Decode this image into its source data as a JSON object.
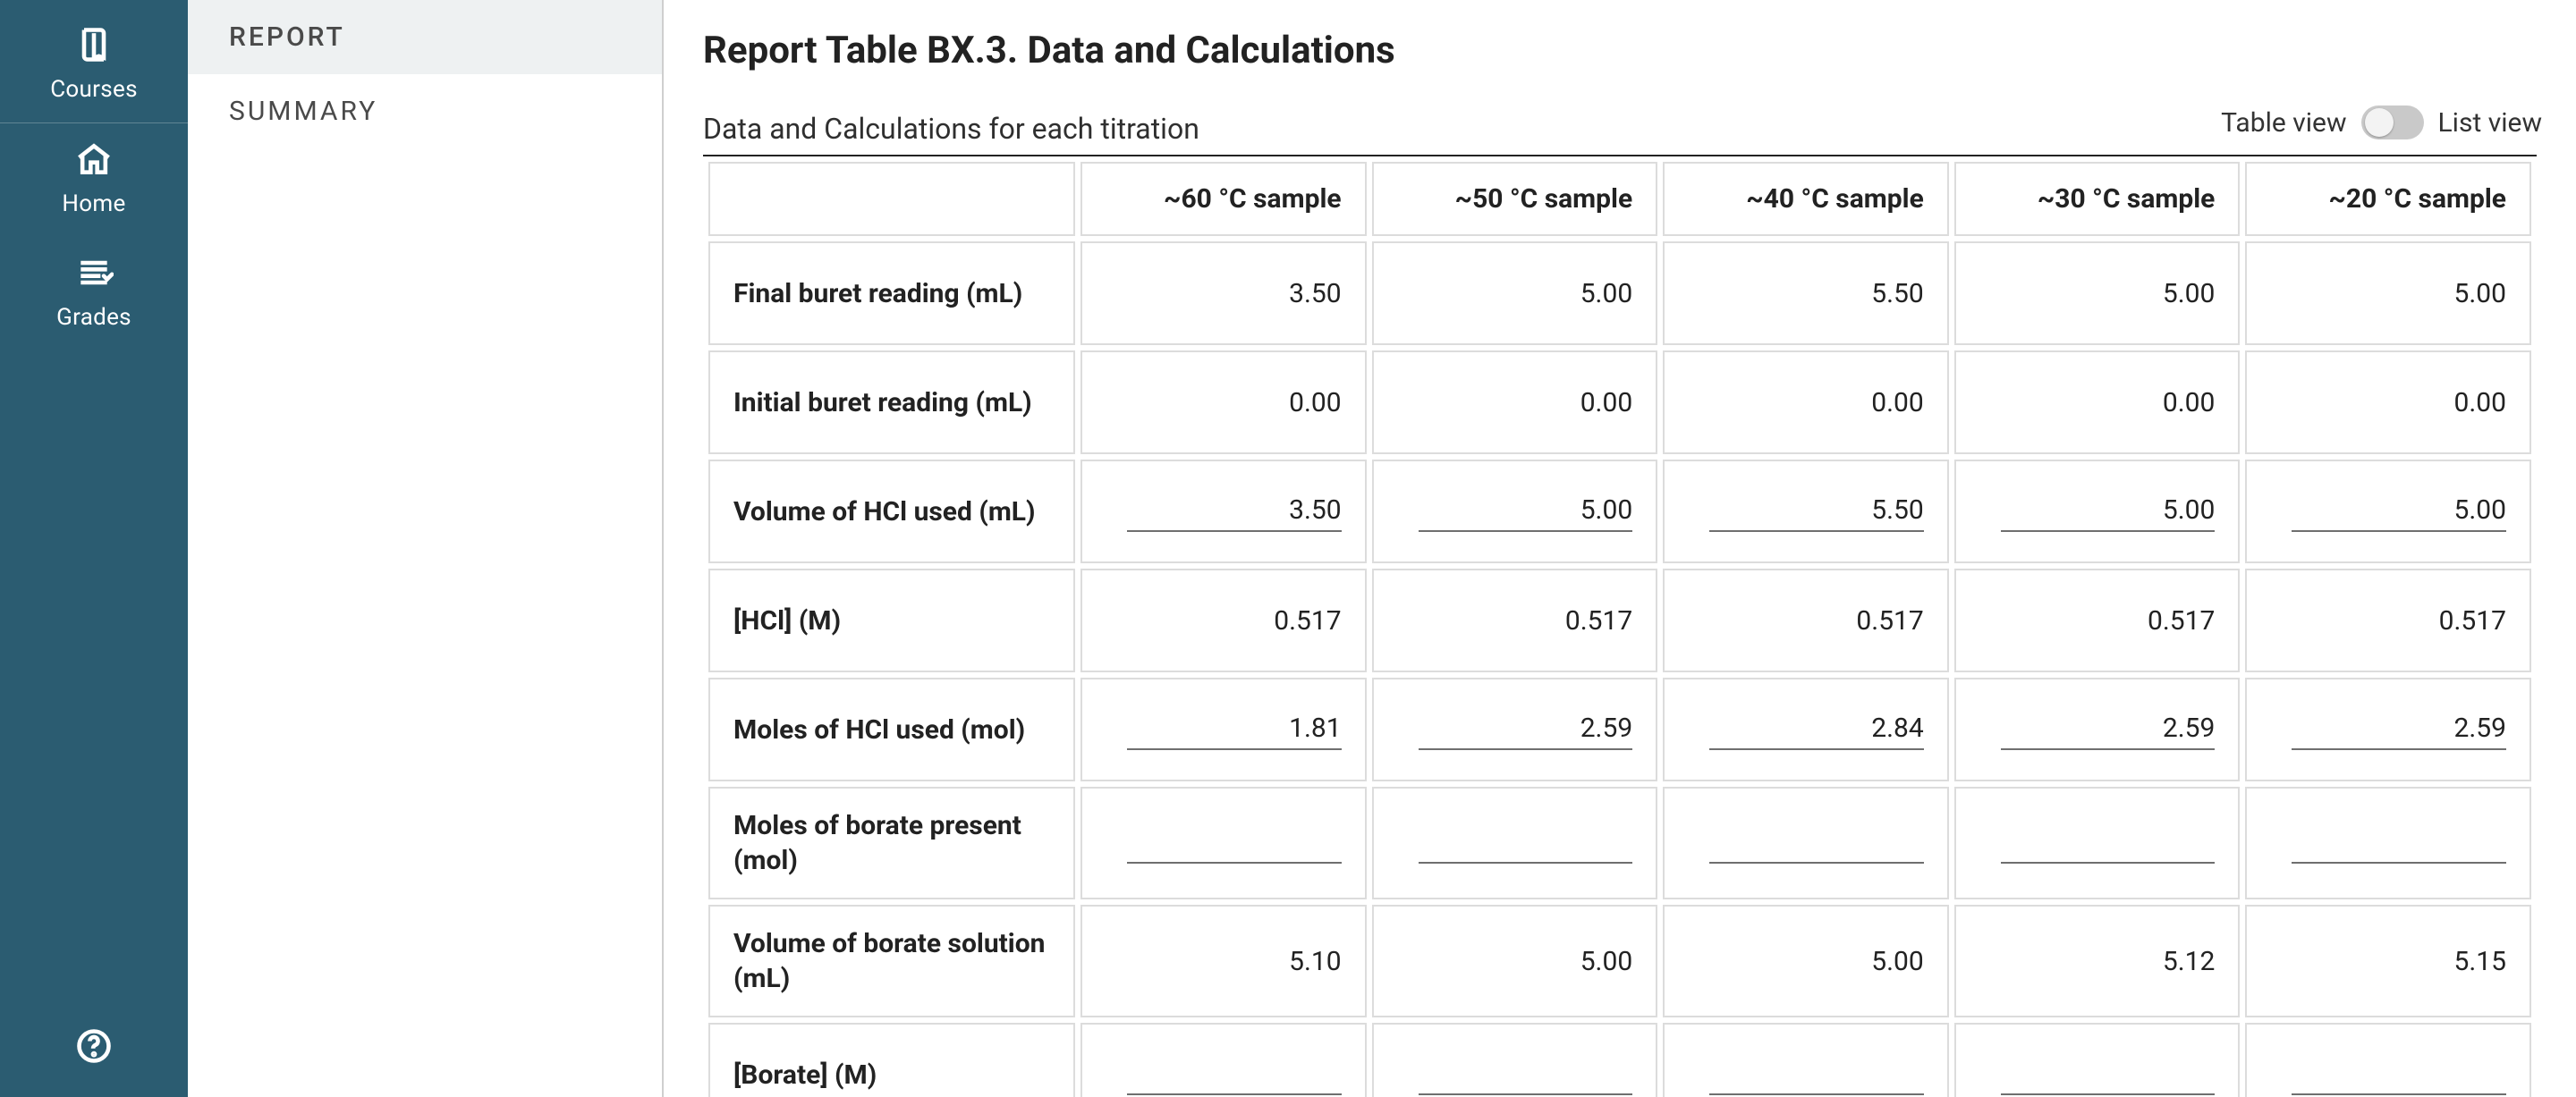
{
  "rail": {
    "items": [
      {
        "key": "courses",
        "label": "Courses",
        "icon": "book"
      },
      {
        "key": "home",
        "label": "Home",
        "icon": "home"
      },
      {
        "key": "grades",
        "label": "Grades",
        "icon": "list"
      }
    ],
    "help_icon": "help"
  },
  "subnav": {
    "items": [
      {
        "key": "report",
        "label": "REPORT",
        "active": true
      },
      {
        "key": "summary",
        "label": "SUMMARY",
        "active": false
      }
    ]
  },
  "main": {
    "title": "Report Table BX.3. Data and Calculations",
    "subtitle": "Data and Calculations for each titration",
    "toggle": {
      "left_label": "Table view",
      "right_label": "List view",
      "state": "table"
    }
  },
  "table": {
    "columns": [
      "~60 °C sample",
      "~50 °C sample",
      "~40 °C sample",
      "~30 °C sample",
      "~20 °C sample"
    ],
    "rows": [
      {
        "label": "Final buret reading (mL)",
        "input": false,
        "values": [
          "3.50",
          "5.00",
          "5.50",
          "5.00",
          "5.00"
        ]
      },
      {
        "label": "Initial buret reading (mL)",
        "input": false,
        "values": [
          "0.00",
          "0.00",
          "0.00",
          "0.00",
          "0.00"
        ]
      },
      {
        "label": "Volume of HCl used (mL)",
        "input": true,
        "values": [
          "3.50",
          "5.00",
          "5.50",
          "5.00",
          "5.00"
        ]
      },
      {
        "label": "[HCl] (M)",
        "input": false,
        "values": [
          "0.517",
          "0.517",
          "0.517",
          "0.517",
          "0.517"
        ]
      },
      {
        "label": "Moles of HCl used (mol)",
        "input": true,
        "values": [
          "1.81",
          "2.59",
          "2.84",
          "2.59",
          "2.59"
        ]
      },
      {
        "label": "Moles of borate present (mol)",
        "input": true,
        "values": [
          "",
          "",
          "",
          "",
          ""
        ]
      },
      {
        "label": "Volume of borate solution (mL)",
        "input": false,
        "values": [
          "5.10",
          "5.00",
          "5.00",
          "5.12",
          "5.15"
        ]
      },
      {
        "label": "[Borate] (M)",
        "input": true,
        "values": [
          "",
          "",
          "",
          "",
          ""
        ]
      }
    ]
  },
  "colors": {
    "rail_bg": "#2b5c71",
    "border": "#dcdcdc",
    "underline": "#6f6f6f",
    "subnav_active_bg": "#eef1f2"
  }
}
